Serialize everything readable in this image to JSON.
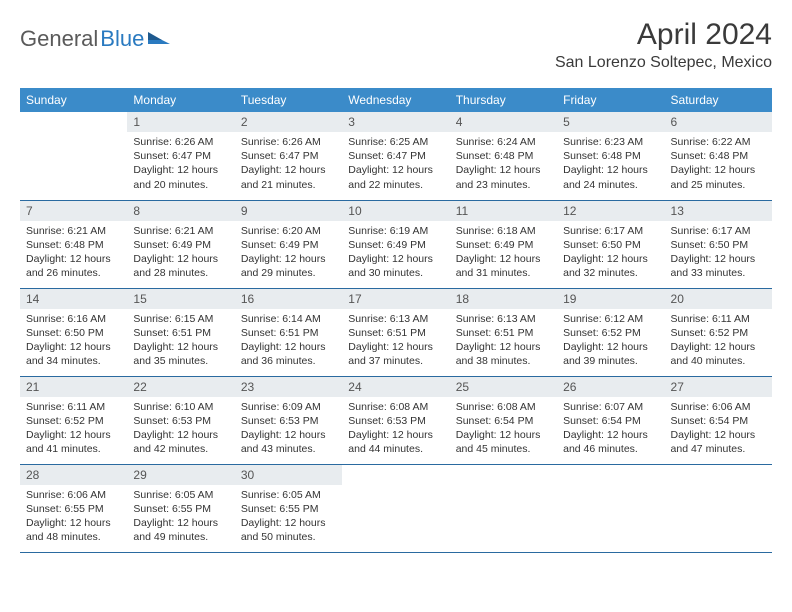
{
  "logo": {
    "text1": "General",
    "text2": "Blue"
  },
  "title": "April 2024",
  "location": "San Lorenzo Soltepec, Mexico",
  "weekdays": [
    "Sunday",
    "Monday",
    "Tuesday",
    "Wednesday",
    "Thursday",
    "Friday",
    "Saturday"
  ],
  "colors": {
    "header_bg": "#3b8bc9",
    "header_fg": "#ffffff",
    "daynum_bg": "#e8ecef",
    "row_border": "#2a6aa0",
    "logo_gray": "#5a5a5a",
    "logo_blue": "#2a7ac0"
  },
  "weeks": [
    [
      {
        "n": "",
        "empty": true,
        "sr": "",
        "ss": "",
        "dl": ""
      },
      {
        "n": "1",
        "sr": "6:26 AM",
        "ss": "6:47 PM",
        "dl": "12 hours and 20 minutes."
      },
      {
        "n": "2",
        "sr": "6:26 AM",
        "ss": "6:47 PM",
        "dl": "12 hours and 21 minutes."
      },
      {
        "n": "3",
        "sr": "6:25 AM",
        "ss": "6:47 PM",
        "dl": "12 hours and 22 minutes."
      },
      {
        "n": "4",
        "sr": "6:24 AM",
        "ss": "6:48 PM",
        "dl": "12 hours and 23 minutes."
      },
      {
        "n": "5",
        "sr": "6:23 AM",
        "ss": "6:48 PM",
        "dl": "12 hours and 24 minutes."
      },
      {
        "n": "6",
        "sr": "6:22 AM",
        "ss": "6:48 PM",
        "dl": "12 hours and 25 minutes."
      }
    ],
    [
      {
        "n": "7",
        "sr": "6:21 AM",
        "ss": "6:48 PM",
        "dl": "12 hours and 26 minutes."
      },
      {
        "n": "8",
        "sr": "6:21 AM",
        "ss": "6:49 PM",
        "dl": "12 hours and 28 minutes."
      },
      {
        "n": "9",
        "sr": "6:20 AM",
        "ss": "6:49 PM",
        "dl": "12 hours and 29 minutes."
      },
      {
        "n": "10",
        "sr": "6:19 AM",
        "ss": "6:49 PM",
        "dl": "12 hours and 30 minutes."
      },
      {
        "n": "11",
        "sr": "6:18 AM",
        "ss": "6:49 PM",
        "dl": "12 hours and 31 minutes."
      },
      {
        "n": "12",
        "sr": "6:17 AM",
        "ss": "6:50 PM",
        "dl": "12 hours and 32 minutes."
      },
      {
        "n": "13",
        "sr": "6:17 AM",
        "ss": "6:50 PM",
        "dl": "12 hours and 33 minutes."
      }
    ],
    [
      {
        "n": "14",
        "sr": "6:16 AM",
        "ss": "6:50 PM",
        "dl": "12 hours and 34 minutes."
      },
      {
        "n": "15",
        "sr": "6:15 AM",
        "ss": "6:51 PM",
        "dl": "12 hours and 35 minutes."
      },
      {
        "n": "16",
        "sr": "6:14 AM",
        "ss": "6:51 PM",
        "dl": "12 hours and 36 minutes."
      },
      {
        "n": "17",
        "sr": "6:13 AM",
        "ss": "6:51 PM",
        "dl": "12 hours and 37 minutes."
      },
      {
        "n": "18",
        "sr": "6:13 AM",
        "ss": "6:51 PM",
        "dl": "12 hours and 38 minutes."
      },
      {
        "n": "19",
        "sr": "6:12 AM",
        "ss": "6:52 PM",
        "dl": "12 hours and 39 minutes."
      },
      {
        "n": "20",
        "sr": "6:11 AM",
        "ss": "6:52 PM",
        "dl": "12 hours and 40 minutes."
      }
    ],
    [
      {
        "n": "21",
        "sr": "6:11 AM",
        "ss": "6:52 PM",
        "dl": "12 hours and 41 minutes."
      },
      {
        "n": "22",
        "sr": "6:10 AM",
        "ss": "6:53 PM",
        "dl": "12 hours and 42 minutes."
      },
      {
        "n": "23",
        "sr": "6:09 AM",
        "ss": "6:53 PM",
        "dl": "12 hours and 43 minutes."
      },
      {
        "n": "24",
        "sr": "6:08 AM",
        "ss": "6:53 PM",
        "dl": "12 hours and 44 minutes."
      },
      {
        "n": "25",
        "sr": "6:08 AM",
        "ss": "6:54 PM",
        "dl": "12 hours and 45 minutes."
      },
      {
        "n": "26",
        "sr": "6:07 AM",
        "ss": "6:54 PM",
        "dl": "12 hours and 46 minutes."
      },
      {
        "n": "27",
        "sr": "6:06 AM",
        "ss": "6:54 PM",
        "dl": "12 hours and 47 minutes."
      }
    ],
    [
      {
        "n": "28",
        "sr": "6:06 AM",
        "ss": "6:55 PM",
        "dl": "12 hours and 48 minutes."
      },
      {
        "n": "29",
        "sr": "6:05 AM",
        "ss": "6:55 PM",
        "dl": "12 hours and 49 minutes."
      },
      {
        "n": "30",
        "sr": "6:05 AM",
        "ss": "6:55 PM",
        "dl": "12 hours and 50 minutes."
      },
      {
        "n": "",
        "empty": true,
        "sr": "",
        "ss": "",
        "dl": ""
      },
      {
        "n": "",
        "empty": true,
        "sr": "",
        "ss": "",
        "dl": ""
      },
      {
        "n": "",
        "empty": true,
        "sr": "",
        "ss": "",
        "dl": ""
      },
      {
        "n": "",
        "empty": true,
        "sr": "",
        "ss": "",
        "dl": ""
      }
    ]
  ],
  "labels": {
    "sunrise": "Sunrise: ",
    "sunset": "Sunset: ",
    "daylight": "Daylight: "
  }
}
